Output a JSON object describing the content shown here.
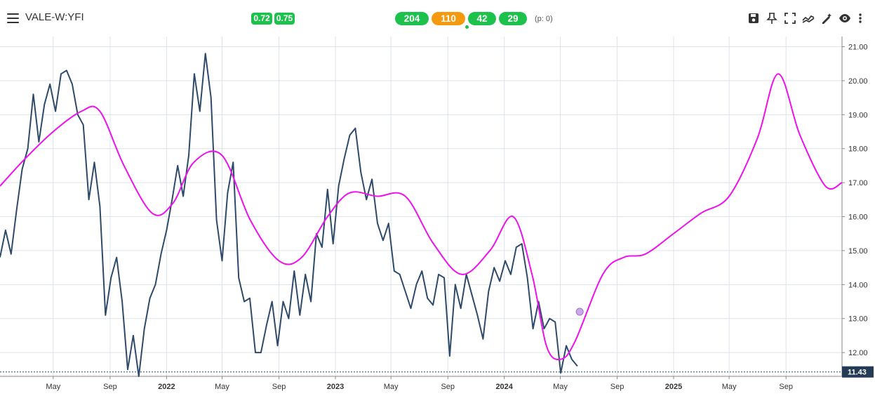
{
  "header": {
    "symbol": "VALE-W:YFI",
    "badges": [
      {
        "label": "0.72",
        "color": "#1cc24c"
      },
      {
        "label": "0.75",
        "color": "#1cc24c"
      }
    ],
    "counts": [
      {
        "label": "204",
        "color": "#1cc24c"
      },
      {
        "label": "110",
        "color": "#f59a0f"
      },
      {
        "label": "42",
        "color": "#1cc24c"
      },
      {
        "label": "29",
        "color": "#1cc24c"
      }
    ],
    "p_value": "(p: 0)",
    "tools": [
      "save-icon",
      "pin-icon",
      "fullscreen-icon",
      "trend-icon",
      "draw-icon",
      "eye-icon",
      "more-vertical-icon"
    ]
  },
  "chart_data": {
    "type": "line",
    "x_tick_labels": [
      "May",
      "Sep",
      "2022",
      "May",
      "Sep",
      "2023",
      "May",
      "Sep",
      "2024",
      "May",
      "Sep",
      "2025",
      "May",
      "Sep"
    ],
    "y_tick_labels": [
      "12.00",
      "13.00",
      "14.00",
      "15.00",
      "16.00",
      "17.00",
      "18.00",
      "19.00",
      "20.00",
      "21.00"
    ],
    "ylim": [
      11.3,
      21.3
    ],
    "xlim": [
      "2021-01-06",
      "2025-12-31"
    ],
    "grid": true,
    "last_price_label": "11.43",
    "last_price": 11.43,
    "series": [
      {
        "color": "#2e4a6b",
        "x": [
          "2021-01-06",
          "2021-01-18",
          "2021-01-30",
          "2021-02-11",
          "2021-02-23",
          "2021-03-07",
          "2021-03-19",
          "2021-03-31",
          "2021-04-12",
          "2021-04-24",
          "2021-05-06",
          "2021-05-18",
          "2021-05-30",
          "2021-06-11",
          "2021-06-23",
          "2021-07-05",
          "2021-07-17",
          "2021-07-29",
          "2021-08-10",
          "2021-08-22",
          "2021-09-03",
          "2021-09-15",
          "2021-09-27",
          "2021-10-09",
          "2021-10-21",
          "2021-11-02",
          "2021-11-14",
          "2021-11-26",
          "2021-12-08",
          "2021-12-20",
          "2022-01-01",
          "2022-01-13",
          "2022-01-25",
          "2022-02-06",
          "2022-02-18",
          "2022-03-02",
          "2022-03-14",
          "2022-03-26",
          "2022-04-07",
          "2022-04-19",
          "2022-05-01",
          "2022-05-13",
          "2022-05-25",
          "2022-06-06",
          "2022-06-18",
          "2022-06-30",
          "2022-07-12",
          "2022-07-24",
          "2022-08-05",
          "2022-08-17",
          "2022-08-29",
          "2022-09-10",
          "2022-09-22",
          "2022-10-04",
          "2022-10-16",
          "2022-10-28",
          "2022-11-09",
          "2022-11-21",
          "2022-12-03",
          "2022-12-15",
          "2022-12-27",
          "2023-01-08",
          "2023-01-20",
          "2023-02-01",
          "2023-02-13",
          "2023-02-25",
          "2023-03-09",
          "2023-03-21",
          "2023-04-02",
          "2023-04-14",
          "2023-04-26",
          "2023-05-08",
          "2023-05-20",
          "2023-06-01",
          "2023-06-13",
          "2023-06-25",
          "2023-07-07",
          "2023-07-19",
          "2023-07-31",
          "2023-08-12",
          "2023-08-24",
          "2023-09-05",
          "2023-09-17",
          "2023-09-29",
          "2023-10-11",
          "2023-10-23",
          "2023-11-04",
          "2023-11-16",
          "2023-11-28",
          "2023-12-10",
          "2023-12-22",
          "2024-01-03",
          "2024-01-15",
          "2024-01-27",
          "2024-02-08",
          "2024-02-20",
          "2024-03-03",
          "2024-03-15",
          "2024-03-27",
          "2024-04-08",
          "2024-04-20",
          "2024-05-02",
          "2024-05-14",
          "2024-05-26",
          "2024-06-07"
        ],
        "y": [
          14.8,
          15.6,
          14.9,
          16.2,
          17.4,
          18.0,
          19.6,
          18.2,
          19.3,
          19.9,
          19.1,
          20.2,
          20.3,
          19.9,
          19.0,
          18.7,
          16.5,
          17.6,
          16.3,
          13.1,
          14.2,
          14.8,
          13.5,
          11.5,
          12.5,
          11.3,
          12.7,
          13.6,
          14.0,
          14.9,
          15.6,
          16.5,
          17.5,
          16.6,
          17.8,
          20.2,
          19.1,
          20.8,
          19.5,
          15.9,
          14.7,
          16.7,
          17.6,
          14.2,
          13.5,
          13.6,
          12.0,
          12.0,
          12.8,
          13.5,
          12.2,
          13.5,
          13.0,
          14.4,
          13.1,
          14.3,
          13.5,
          15.5,
          15.1,
          16.8,
          15.2,
          16.9,
          17.7,
          18.4,
          18.6,
          17.3,
          16.5,
          17.1,
          15.8,
          15.3,
          15.8,
          14.4,
          14.3,
          13.8,
          13.3,
          14.0,
          14.4,
          13.6,
          13.4,
          14.3,
          14.2,
          11.9,
          14.0,
          13.3,
          14.3,
          13.7,
          13.1,
          12.4,
          13.8,
          14.5,
          14.1,
          14.7,
          14.3,
          15.1,
          15.2,
          14.2,
          12.7,
          13.5,
          12.7,
          13.0,
          12.9,
          11.4,
          12.2,
          11.8,
          11.6
        ]
      },
      {
        "color": "#ee11ee",
        "x": [
          "2021-01-06",
          "2021-03-01",
          "2021-05-01",
          "2021-07-01",
          "2021-08-10",
          "2021-10-01",
          "2021-12-01",
          "2022-01-15",
          "2022-03-01",
          "2022-05-01",
          "2022-07-01",
          "2022-09-01",
          "2022-10-20",
          "2022-12-15",
          "2023-02-01",
          "2023-04-01",
          "2023-06-01",
          "2023-08-01",
          "2023-10-01",
          "2023-12-01",
          "2024-01-20",
          "2024-03-01",
          "2024-04-01",
          "2024-05-01",
          "2024-06-01",
          "2024-08-01",
          "2024-09-15",
          "2024-11-01",
          "2025-01-01",
          "2025-03-01",
          "2025-05-01",
          "2025-07-01",
          "2025-08-15",
          "2025-10-01",
          "2025-11-25",
          "2025-12-31"
        ],
        "y": [
          16.9,
          17.7,
          18.5,
          19.1,
          19.1,
          17.5,
          16.1,
          16.4,
          17.6,
          17.8,
          15.9,
          14.7,
          14.8,
          16.0,
          16.7,
          16.6,
          16.6,
          15.2,
          14.3,
          15.0,
          16.0,
          14.3,
          12.2,
          11.8,
          12.3,
          14.3,
          14.8,
          14.9,
          15.5,
          16.1,
          16.6,
          18.3,
          20.2,
          18.4,
          16.9,
          17.0
        ]
      }
    ],
    "marker": {
      "x": "2024-06-12",
      "y": 13.2,
      "color": "#c9a9e9"
    }
  }
}
